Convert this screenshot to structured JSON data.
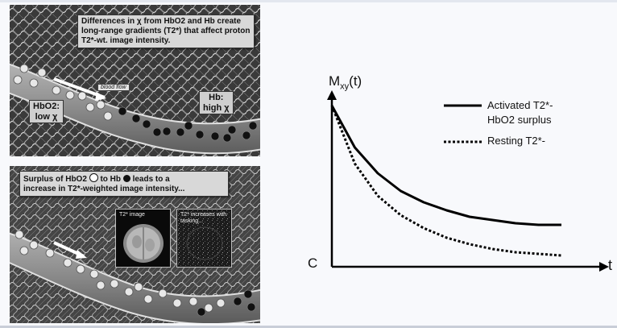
{
  "top_panel": {
    "callout": "Differences in χ from HbO2 and Hb create long-range gradients (T2*) that affect proton T2*-wt. image intensity.",
    "flow_label": "blood flow",
    "left_label": [
      "HbO2:",
      "low χ"
    ],
    "right_label": [
      "Hb:",
      "high χ"
    ]
  },
  "bottom_panel": {
    "callout_line1_a": "Surplus of HbO2",
    "callout_line1_b": "to Hb",
    "callout_line1_c": "leads to a",
    "callout_line2": "increase in T2*-weighted image intensity...",
    "inset1_caption": "T2* image",
    "inset2_caption": "T2* increases with tasking..."
  },
  "chart_data": {
    "type": "line",
    "ylabel": "Mxy(t)",
    "ylabel_main": "M",
    "ylabel_sub": "xy",
    "ylabel_tail": "(t)",
    "xlabel": "t",
    "y_origin_label": "C",
    "series": [
      {
        "name": "Activated T2*- HbO2 surplus",
        "style": "solid",
        "x": [
          0,
          0.1,
          0.2,
          0.3,
          0.4,
          0.5,
          0.6,
          0.7,
          0.8,
          0.9,
          1.0
        ],
        "y": [
          1.0,
          0.74,
          0.58,
          0.47,
          0.4,
          0.35,
          0.31,
          0.29,
          0.27,
          0.26,
          0.26
        ]
      },
      {
        "name": "Resting T2*-",
        "style": "dotted",
        "x": [
          0,
          0.1,
          0.2,
          0.3,
          0.4,
          0.5,
          0.6,
          0.7,
          0.8,
          0.9,
          1.0
        ],
        "y": [
          1.0,
          0.64,
          0.44,
          0.32,
          0.24,
          0.18,
          0.14,
          0.11,
          0.09,
          0.08,
          0.07
        ]
      }
    ],
    "legend": [
      "Activated T2*-",
      "HbO2  surplus",
      "Resting T2*-"
    ],
    "grid": false,
    "legend_placement": "top-right"
  },
  "colors": {
    "background": "#f8f9fc",
    "line": "#000000",
    "vessel": "#8a8a8a"
  }
}
